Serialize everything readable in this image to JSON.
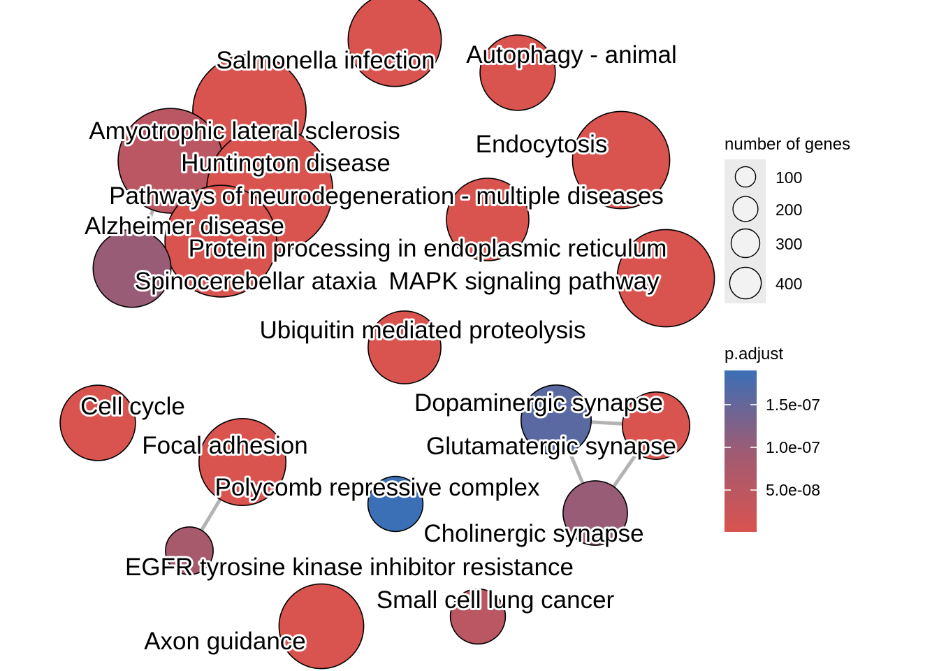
{
  "network": {
    "colors": {
      "low": "#D9534F",
      "mid": "#9E5B73",
      "high": "#3B6FB6",
      "edge": "#B3B3B3",
      "node_outline": "#000000"
    },
    "nodes": [
      {
        "id": "salmonella",
        "label": "Salmonella infection",
        "genes": 230,
        "p": 1e-09
      },
      {
        "id": "autophagy",
        "label": "Autophagy - animal",
        "genes": 150,
        "p": 1e-09
      },
      {
        "id": "als",
        "label": "Amyotrophic lateral sclerosis",
        "genes": 340,
        "p": 1e-09
      },
      {
        "id": "endocytosis",
        "label": "Endocytosis",
        "genes": 250,
        "p": 1e-09
      },
      {
        "id": "huntington",
        "label": "Huntington disease",
        "genes": 290,
        "p": 5e-08
      },
      {
        "id": "neurodegeneration",
        "label": "Pathways of neurodegeneration - multiple diseases",
        "genes": 420,
        "p": 1e-09
      },
      {
        "id": "alzheimer",
        "label": "Alzheimer disease",
        "genes": 330,
        "p": 1e-09
      },
      {
        "id": "protein_er",
        "label": "Protein processing in endoplasmic reticulum",
        "genes": 180,
        "p": 1e-09
      },
      {
        "id": "sca",
        "label": "Spinocerebellar ataxia",
        "genes": 160,
        "p": 1e-07
      },
      {
        "id": "mapk",
        "label": "MAPK signaling pathway",
        "genes": 250,
        "p": 1e-09
      },
      {
        "id": "ubiquitin",
        "label": "Ubiquitin mediated proteolysis",
        "genes": 140,
        "p": 1e-09
      },
      {
        "id": "cellcycle",
        "label": "Cell cycle",
        "genes": 150,
        "p": 1e-09
      },
      {
        "id": "dopaminergic",
        "label": "Dopaminergic synapse",
        "genes": 130,
        "p": 1.6e-07
      },
      {
        "id": "glutamatergic",
        "label": "Glutamatergic synapse",
        "genes": 120,
        "p": 1e-09
      },
      {
        "id": "focal",
        "label": "Focal adhesion",
        "genes": 200,
        "p": 1e-09
      },
      {
        "id": "polycomb",
        "label": "Polycomb repressive complex",
        "genes": 80,
        "p": 1.9e-07
      },
      {
        "id": "cholinergic",
        "label": "Cholinergic synapse",
        "genes": 110,
        "p": 1e-07
      },
      {
        "id": "egfr",
        "label": "EGFR tyrosine kinase inhibitor resistance",
        "genes": 60,
        "p": 8e-08
      },
      {
        "id": "sclc",
        "label": "Small cell lung cancer",
        "genes": 80,
        "p": 5e-08
      },
      {
        "id": "axon",
        "label": "Axon guidance",
        "genes": 190,
        "p": 1e-09
      }
    ],
    "edges": [
      [
        "als",
        "huntington"
      ],
      [
        "als",
        "neurodegeneration"
      ],
      [
        "als",
        "alzheimer"
      ],
      [
        "huntington",
        "neurodegeneration"
      ],
      [
        "huntington",
        "alzheimer"
      ],
      [
        "huntington",
        "sca"
      ],
      [
        "neurodegeneration",
        "alzheimer"
      ],
      [
        "neurodegeneration",
        "sca"
      ],
      [
        "alzheimer",
        "sca"
      ],
      [
        "dopaminergic",
        "glutamatergic"
      ],
      [
        "dopaminergic",
        "cholinergic"
      ],
      [
        "glutamatergic",
        "cholinergic"
      ],
      [
        "focal",
        "egfr"
      ]
    ]
  },
  "legend": {
    "size": {
      "title": "number of genes",
      "entries": [
        {
          "label": "100",
          "value": 100
        },
        {
          "label": "200",
          "value": 200
        },
        {
          "label": "300",
          "value": 300
        },
        {
          "label": "400",
          "value": 400
        }
      ]
    },
    "color": {
      "title": "p.adjust",
      "min": 1e-09,
      "max": 1.9e-07,
      "ticks": [
        {
          "label": "1.5e-07",
          "value": 1.5e-07
        },
        {
          "label": "1.0e-07",
          "value": 1e-07
        },
        {
          "label": "5.0e-08",
          "value": 5e-08
        }
      ]
    }
  }
}
